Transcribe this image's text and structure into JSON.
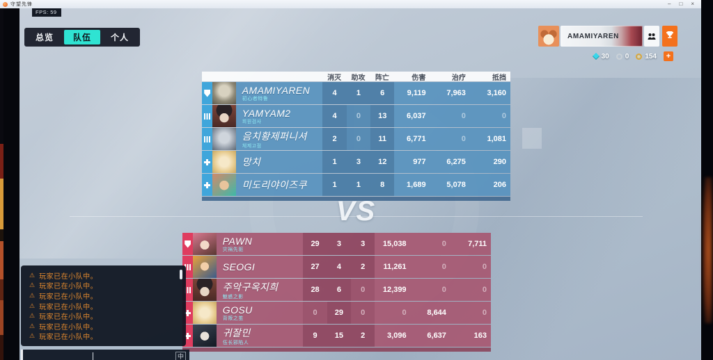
{
  "theme": {
    "accent_cyan": "#2fe3d2",
    "team_blue_row": "#5892be",
    "team_blue_role": "#3ea6dc",
    "team_red_row": "#a75872",
    "team_red_role": "#e23a5e",
    "warning_orange": "#e2892e",
    "button_orange": "#f4711c"
  },
  "window": {
    "title": "守望先锋",
    "fps_label": "FPS: 59",
    "minimize_label": "–",
    "maximize_label": "□",
    "close_label": "×"
  },
  "tabs": [
    {
      "label": "总览",
      "active": false
    },
    {
      "label": "队伍",
      "active": true
    },
    {
      "label": "个人",
      "active": false
    }
  ],
  "player_plate": {
    "name": "AMAMIYAREN",
    "avatar_icon": "corgi-avatar",
    "social_icon": "group-icon",
    "challenge_icon": "trophy-icon",
    "currencies": [
      {
        "icon": "gem-icon",
        "value": "30"
      },
      {
        "icon": "silver-coin-icon",
        "value": "0"
      },
      {
        "icon": "gold-coin-icon",
        "value": "154"
      }
    ],
    "add_button_label": "+"
  },
  "scoreboard": {
    "columns": [
      "消灭",
      "助攻",
      "阵亡",
      "伤害",
      "治疗",
      "抵挡"
    ],
    "vs_label": "VS",
    "teams": [
      {
        "color": "blue",
        "players": [
          {
            "role": "tank",
            "avatar": "wrecking-ball",
            "name": "AMAMIYAREN",
            "title": "初心者特鲁",
            "stats": [
              "4",
              "1",
              "6",
              "9,119",
              "7,963",
              "3,160"
            ]
          },
          {
            "role": "damage",
            "avatar": "ashe",
            "name": "YAMYAM2",
            "title": "회원검사",
            "stats": [
              "4",
              "0",
              "13",
              "6,037",
              "0",
              "0"
            ]
          },
          {
            "role": "damage",
            "avatar": "reinhardt",
            "name": "음치황제퍼니셔",
            "title": "체제고점",
            "stats": [
              "2",
              "0",
              "11",
              "6,771",
              "0",
              "1,081"
            ]
          },
          {
            "role": "support",
            "avatar": "mercy",
            "name": "망치",
            "title": "",
            "stats": [
              "1",
              "3",
              "12",
              "977",
              "6,275",
              "290"
            ]
          },
          {
            "role": "support",
            "avatar": "lifeweaver",
            "name": "미도리야이즈쿠",
            "title": "",
            "stats": [
              "1",
              "1",
              "8",
              "1,689",
              "5,078",
              "206"
            ]
          }
        ]
      },
      {
        "color": "red",
        "players": [
          {
            "role": "tank",
            "avatar": "dva",
            "name": "PAWN",
            "title": "灾祸先驱",
            "stats": [
              "29",
              "3",
              "3",
              "15,038",
              "0",
              "7,711"
            ]
          },
          {
            "role": "damage",
            "avatar": "tracer",
            "name": "SEOGI",
            "title": "",
            "stats": [
              "27",
              "4",
              "2",
              "11,261",
              "0",
              "0"
            ]
          },
          {
            "role": "damage",
            "avatar": "ashe",
            "name": "주악구옥지희",
            "title": "魅惑之影",
            "stats": [
              "28",
              "6",
              "0",
              "12,399",
              "0",
              "0"
            ]
          },
          {
            "role": "support",
            "avatar": "mercy",
            "name": "GOSU",
            "title": "背叛之茧",
            "stats": [
              "0",
              "29",
              "0",
              "0",
              "8,644",
              "0"
            ]
          },
          {
            "role": "support",
            "avatar": "kiriko",
            "name": "귀잘민",
            "title": "伍长邪陷人",
            "stats": [
              "9",
              "15",
              "2",
              "3,096",
              "6,637",
              "163"
            ]
          }
        ]
      }
    ]
  },
  "chat": {
    "warning_glyph": "⚠",
    "messages": [
      "玩家已在小队中。",
      "玩家已在小队中。",
      "玩家已在小队中。",
      "玩家已在小队中。",
      "玩家已在小队中。",
      "玩家已在小队中。",
      "玩家已在小队中。"
    ],
    "ime_label": "中"
  }
}
